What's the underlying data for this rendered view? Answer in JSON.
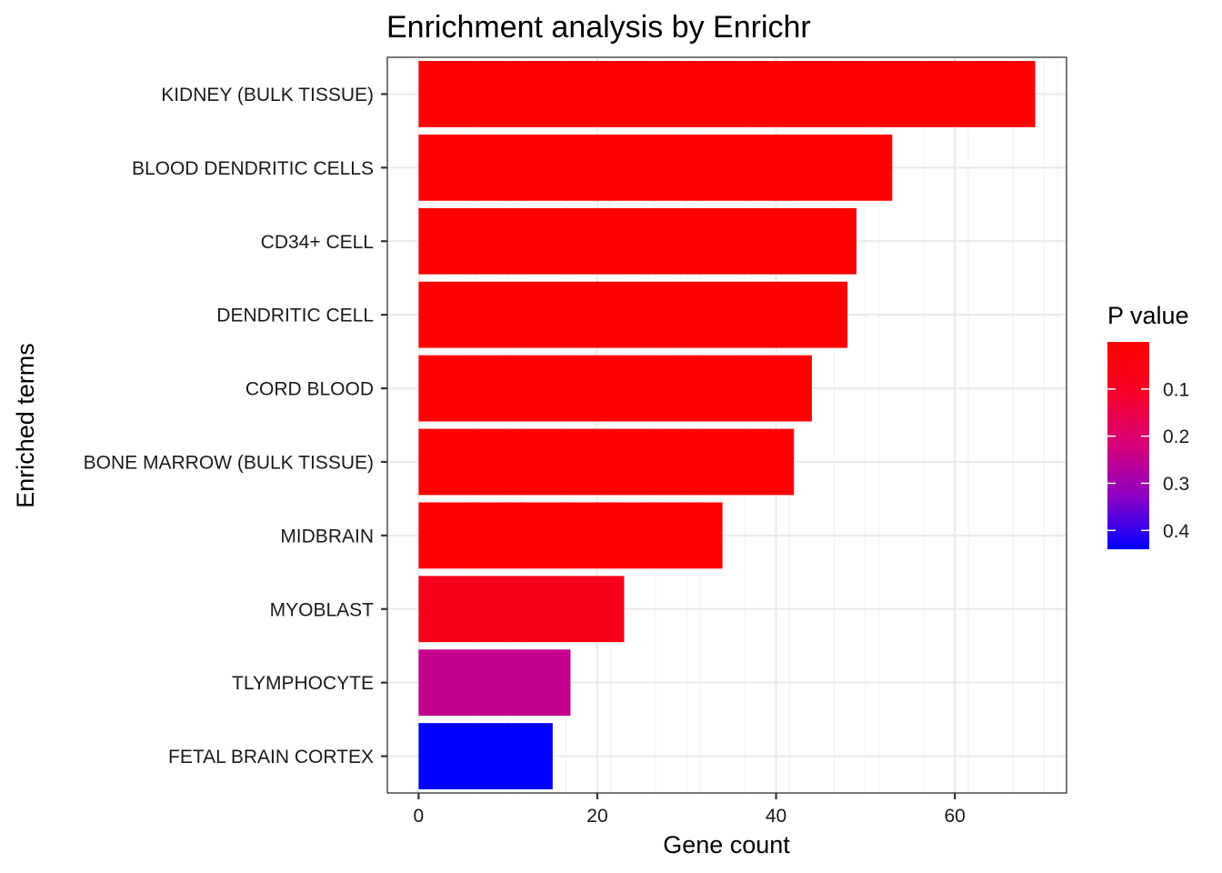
{
  "chart_data": {
    "type": "bar",
    "orientation": "horizontal",
    "title": "Enrichment analysis by Enrichr",
    "xlabel": "Gene count",
    "ylabel": "Enriched terms",
    "xlim": [
      -3.5,
      72.5
    ],
    "x_ticks": [
      0,
      20,
      40,
      60
    ],
    "x_tick_labels": [
      "0",
      "20",
      "40",
      "60"
    ],
    "grid": true,
    "categories": [
      "KIDNEY (BULK TISSUE)",
      "BLOOD DENDRITIC CELLS",
      "CD34+ CELL",
      "DENDRITIC CELL",
      "CORD BLOOD",
      "BONE MARROW (BULK TISSUE)",
      "MIDBRAIN",
      "MYOBLAST",
      "TLYMPHOCYTE",
      "FETAL BRAIN CORTEX"
    ],
    "values": [
      69,
      53,
      49,
      48,
      44,
      42,
      34,
      23,
      17,
      15
    ],
    "p_values": [
      0.001,
      0.001,
      0.001,
      0.001,
      0.001,
      0.001,
      0.001,
      0.02,
      0.25,
      0.44
    ],
    "colors": [
      "#ff0000",
      "#ff0000",
      "#ff0000",
      "#ff0000",
      "#ff0000",
      "#ff0000",
      "#ff0000",
      "#f70019",
      "#c4008f",
      "#0000ff"
    ],
    "legend": {
      "title": "P value",
      "placement": "right",
      "type": "colorbar",
      "low_color": "#ff0000",
      "high_color": "#0000ff",
      "range": [
        0.0,
        0.44
      ],
      "ticks": [
        0.1,
        0.2,
        0.3,
        0.4
      ],
      "tick_labels": [
        "0.1",
        "0.2",
        "0.3",
        "0.4"
      ]
    }
  }
}
